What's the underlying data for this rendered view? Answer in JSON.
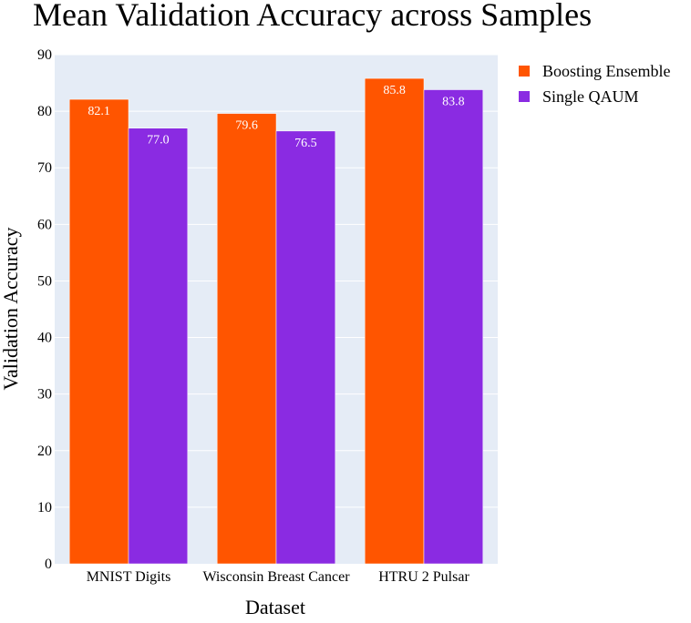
{
  "chart_data": {
    "type": "bar",
    "title": "Mean Validation Accuracy across Samples",
    "xlabel": "Dataset",
    "ylabel": "Validation Accuracy",
    "categories": [
      "MNIST Digits",
      "Wisconsin Breast Cancer",
      "HTRU 2 Pulsar"
    ],
    "series": [
      {
        "name": "Boosting Ensemble",
        "values": [
          82.1,
          79.6,
          85.8
        ],
        "labels": [
          "82.1",
          "79.6",
          "85.8"
        ],
        "color": "#ff5500"
      },
      {
        "name": "Single QAUM",
        "values": [
          77.0,
          76.5,
          83.8
        ],
        "labels": [
          "77.0",
          "76.5",
          "83.8"
        ],
        "color": "#8a2be2"
      }
    ],
    "ylim": [
      0,
      90
    ],
    "yticks": [
      "0",
      "10",
      "20",
      "30",
      "40",
      "50",
      "60",
      "70",
      "80",
      "90"
    ],
    "grid": true,
    "legend_position": "top-right",
    "plot_background": "#e5ecf6"
  }
}
